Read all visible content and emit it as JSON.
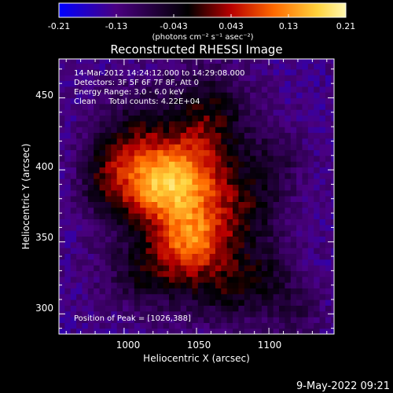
{
  "colorbar": {
    "tick_labels": [
      "-0.21",
      "-0.13",
      "-0.043",
      "0.043",
      "0.13",
      "0.21"
    ],
    "unit_label": "(photons cm⁻² s⁻¹ asec⁻²)",
    "colors": [
      "#0000ff",
      "#4a0080",
      "#000000",
      "#b80000",
      "#ff6a00",
      "#ffd23c",
      "#fff8b0"
    ]
  },
  "chart_data": {
    "type": "heatmap",
    "title": "Reconstructed RHESSI Image",
    "xlabel": "Heliocentric X (arcsec)",
    "ylabel": "Heliocentric Y (arcsec)",
    "xlim": [
      955,
      1145
    ],
    "ylim": [
      286,
      477
    ],
    "x_ticks": [
      "1000",
      "1050",
      "1100"
    ],
    "x_tick_values": [
      1000,
      1050,
      1100
    ],
    "y_ticks": [
      "300",
      "350",
      "400",
      "450"
    ],
    "y_tick_values": [
      300,
      350,
      400,
      450
    ],
    "zlim": [
      -0.21,
      0.21
    ],
    "peak": [
      1026,
      388
    ],
    "annotations": [
      "14-Mar-2012 14:24:12.000 to 14:29:08.000",
      "Detectors: 3F 5F 6F 7F 8F, Att 0",
      "Energy Range: 3.0 - 6.0 keV",
      "Clean     Total counts: 4.22E+04"
    ],
    "peak_label": "Position of Peak = [1026,388]"
  },
  "footer": {
    "date": "9-May-2022 09:21"
  }
}
